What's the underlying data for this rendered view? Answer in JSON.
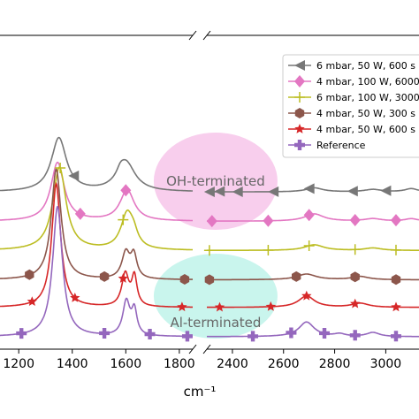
{
  "chart_data": {
    "type": "line",
    "title": "",
    "xlabel": "cm⁻¹",
    "ylabel": "",
    "x_axis_break": [
      1850,
      2300
    ],
    "xlim": [
      1130,
      3130
    ],
    "xticks": [
      {
        "value": 1200,
        "label": "1200"
      },
      {
        "value": 1400,
        "label": "1400"
      },
      {
        "value": 1600,
        "label": "1600"
      },
      {
        "value": 1800,
        "label": "1800"
      },
      {
        "value": 2400,
        "label": "2400"
      },
      {
        "value": 2600,
        "label": "2600"
      },
      {
        "value": 2800,
        "label": "2800"
      },
      {
        "value": 3000,
        "label": "3000"
      }
    ],
    "legend_position": "top-right",
    "annotations": [
      {
        "text": "OH-terminated",
        "x": 1830,
        "color": "#f7c6ea"
      },
      {
        "text": "Al-terminated",
        "x": 1830,
        "color": "#bff3ea"
      }
    ],
    "series": [
      {
        "name": "6 mbar, 50 W, 600 s",
        "color": "#777777",
        "marker": "triangle-left",
        "baseline": 8.9,
        "peaks": [
          [
            1350,
            3.3,
            34
          ],
          [
            1600,
            1.8,
            42
          ],
          [
            1580,
            0.3,
            15
          ],
          [
            2720,
            0.25,
            40
          ],
          [
            2950,
            0.15,
            40
          ],
          [
            3100,
            0.2,
            30
          ]
        ],
        "marker_x": [
          1405,
          1950,
          2310,
          2420,
          2560,
          2700,
          2870,
          3000
        ]
      },
      {
        "name": "4 mbar, 100 W, 6000 s",
        "color": "#e377c2",
        "marker": "diamond",
        "baseline": 7.1,
        "peaks": [
          [
            1345,
            3.6,
            30
          ],
          [
            1605,
            1.9,
            32
          ],
          [
            2720,
            0.45,
            45
          ],
          [
            2950,
            0.15,
            40
          ],
          [
            3100,
            0.15,
            30
          ]
        ],
        "marker_x": [
          1430,
          1600,
          2320,
          2540,
          2700,
          2880,
          3040
        ]
      },
      {
        "name": "6 mbar, 100 W, 3000 s",
        "color": "#bcbd22",
        "marker": "plus",
        "baseline": 5.3,
        "peaks": [
          [
            1352,
            5.1,
            30
          ],
          [
            1605,
            2.2,
            28
          ],
          [
            1630,
            0.6,
            18
          ],
          [
            2720,
            0.35,
            45
          ],
          [
            2950,
            0.15,
            40
          ]
        ],
        "marker_x": [
          1355,
          1590,
          2310,
          2540,
          2700,
          2880,
          3040
        ]
      },
      {
        "name": "4 mbar, 50 W, 300 s",
        "color": "#8c564b",
        "marker": "hexagon",
        "baseline": 3.5,
        "peaks": [
          [
            1340,
            6.8,
            22
          ],
          [
            1600,
            1.6,
            18
          ],
          [
            1630,
            1.4,
            14
          ],
          [
            2690,
            0.35,
            45
          ],
          [
            2900,
            0.2,
            40
          ]
        ],
        "marker_x": [
          1240,
          1520,
          1820,
          2310,
          2650,
          2880,
          3040
        ]
      },
      {
        "name": "4 mbar, 50 W, 600 s",
        "color": "#d62728",
        "marker": "star",
        "baseline": 1.8,
        "peaks": [
          [
            1340,
            7.6,
            20
          ],
          [
            1598,
            2.0,
            16
          ],
          [
            1632,
            1.8,
            12
          ],
          [
            2690,
            0.7,
            38
          ],
          [
            2900,
            0.25,
            40
          ]
        ],
        "marker_x": [
          1250,
          1410,
          1590,
          1810,
          2350,
          2550,
          2690,
          2880,
          3040
        ]
      },
      {
        "name": "Reference",
        "color": "#9467bd",
        "marker": "plus-bold",
        "baseline": 0,
        "peaks": [
          [
            1345,
            8.0,
            22
          ],
          [
            1602,
            2.1,
            16
          ],
          [
            1632,
            1.5,
            12
          ],
          [
            2690,
            0.9,
            36
          ],
          [
            2820,
            0.15,
            25
          ],
          [
            2950,
            0.25,
            30
          ]
        ],
        "marker_x": [
          1210,
          1520,
          1690,
          1830,
          2480,
          2630,
          2760,
          2880,
          3040
        ]
      }
    ]
  }
}
